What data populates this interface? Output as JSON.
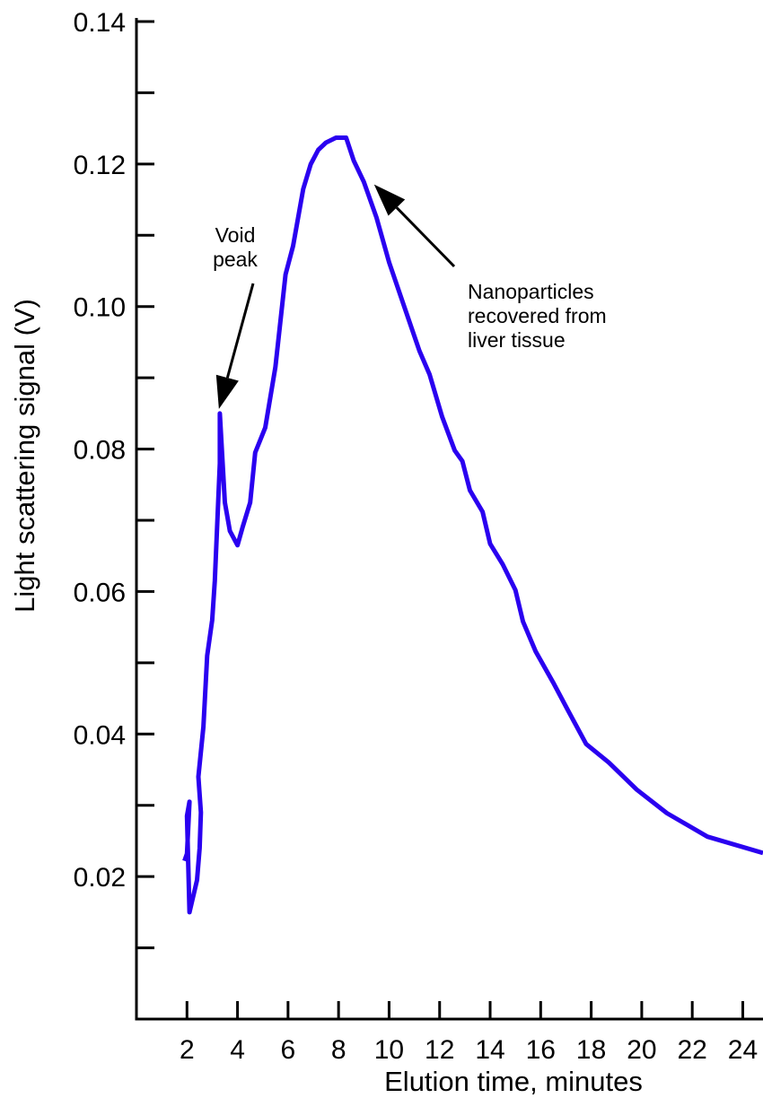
{
  "chart_data": {
    "type": "line",
    "title": "",
    "xlabel": "Elution time, minutes",
    "ylabel": "Light scattering signal (V)",
    "xlim": [
      0,
      24.8
    ],
    "ylim": [
      0,
      0.14
    ],
    "x_ticks": [
      2,
      4,
      6,
      8,
      10,
      12,
      14,
      16,
      18,
      20,
      22,
      24
    ],
    "y_ticks_labeled": [
      0.02,
      0.04,
      0.06,
      0.08,
      0.1,
      0.12,
      0.14
    ],
    "y_tick_labels": [
      "0.02",
      "0.04",
      "0.06",
      "0.08",
      "0.10",
      "0.12",
      "0.14"
    ],
    "y_ticks_minor": [
      0.01,
      0.03,
      0.05,
      0.07,
      0.09,
      0.11,
      0.13
    ],
    "grid": false,
    "series_color": "#2a00f0",
    "series": [
      {
        "name": "",
        "x": [
          1.9,
          2.0,
          2.1,
          2.0,
          2.1,
          2.4,
          2.5,
          2.55,
          2.45,
          2.65,
          2.8,
          3.0,
          3.1,
          3.3,
          3.3,
          3.5,
          3.7,
          4.0,
          4.2,
          4.5,
          4.7,
          5.1,
          5.5,
          5.9,
          6.2,
          6.6,
          6.9,
          7.2,
          7.5,
          7.9,
          8.3,
          8.6,
          9.0,
          9.5,
          10.0,
          10.6,
          11.2,
          11.6,
          12.1,
          12.6,
          12.9,
          13.2,
          13.7,
          14.0,
          14.5,
          15.0,
          15.3,
          15.8,
          16.5,
          17.1,
          17.8,
          18.7,
          19.8,
          21.0,
          22.6,
          24.8
        ],
        "y": [
          0.0222,
          0.0232,
          0.0305,
          0.0285,
          0.015,
          0.0195,
          0.024,
          0.029,
          0.034,
          0.041,
          0.051,
          0.056,
          0.0615,
          0.078,
          0.085,
          0.0725,
          0.0685,
          0.0665,
          0.069,
          0.0725,
          0.0795,
          0.083,
          0.0915,
          0.1045,
          0.1085,
          0.1165,
          0.12,
          0.122,
          0.123,
          0.1237,
          0.1237,
          0.1205,
          0.1175,
          0.1125,
          0.1062,
          0.1,
          0.0938,
          0.0905,
          0.0845,
          0.0798,
          0.0783,
          0.0742,
          0.0712,
          0.0667,
          0.0638,
          0.0602,
          0.0558,
          0.0516,
          0.0472,
          0.0432,
          0.0386,
          0.036,
          0.0322,
          0.0289,
          0.0256,
          0.0233
        ]
      }
    ],
    "annotations": [
      {
        "text": [
          "Void",
          "peak"
        ],
        "points_to": [
          3.3,
          0.085
        ]
      },
      {
        "text": [
          "Nanoparticles",
          "recovered from",
          "liver tissue"
        ],
        "points_to": [
          9.3,
          0.117
        ]
      }
    ]
  }
}
